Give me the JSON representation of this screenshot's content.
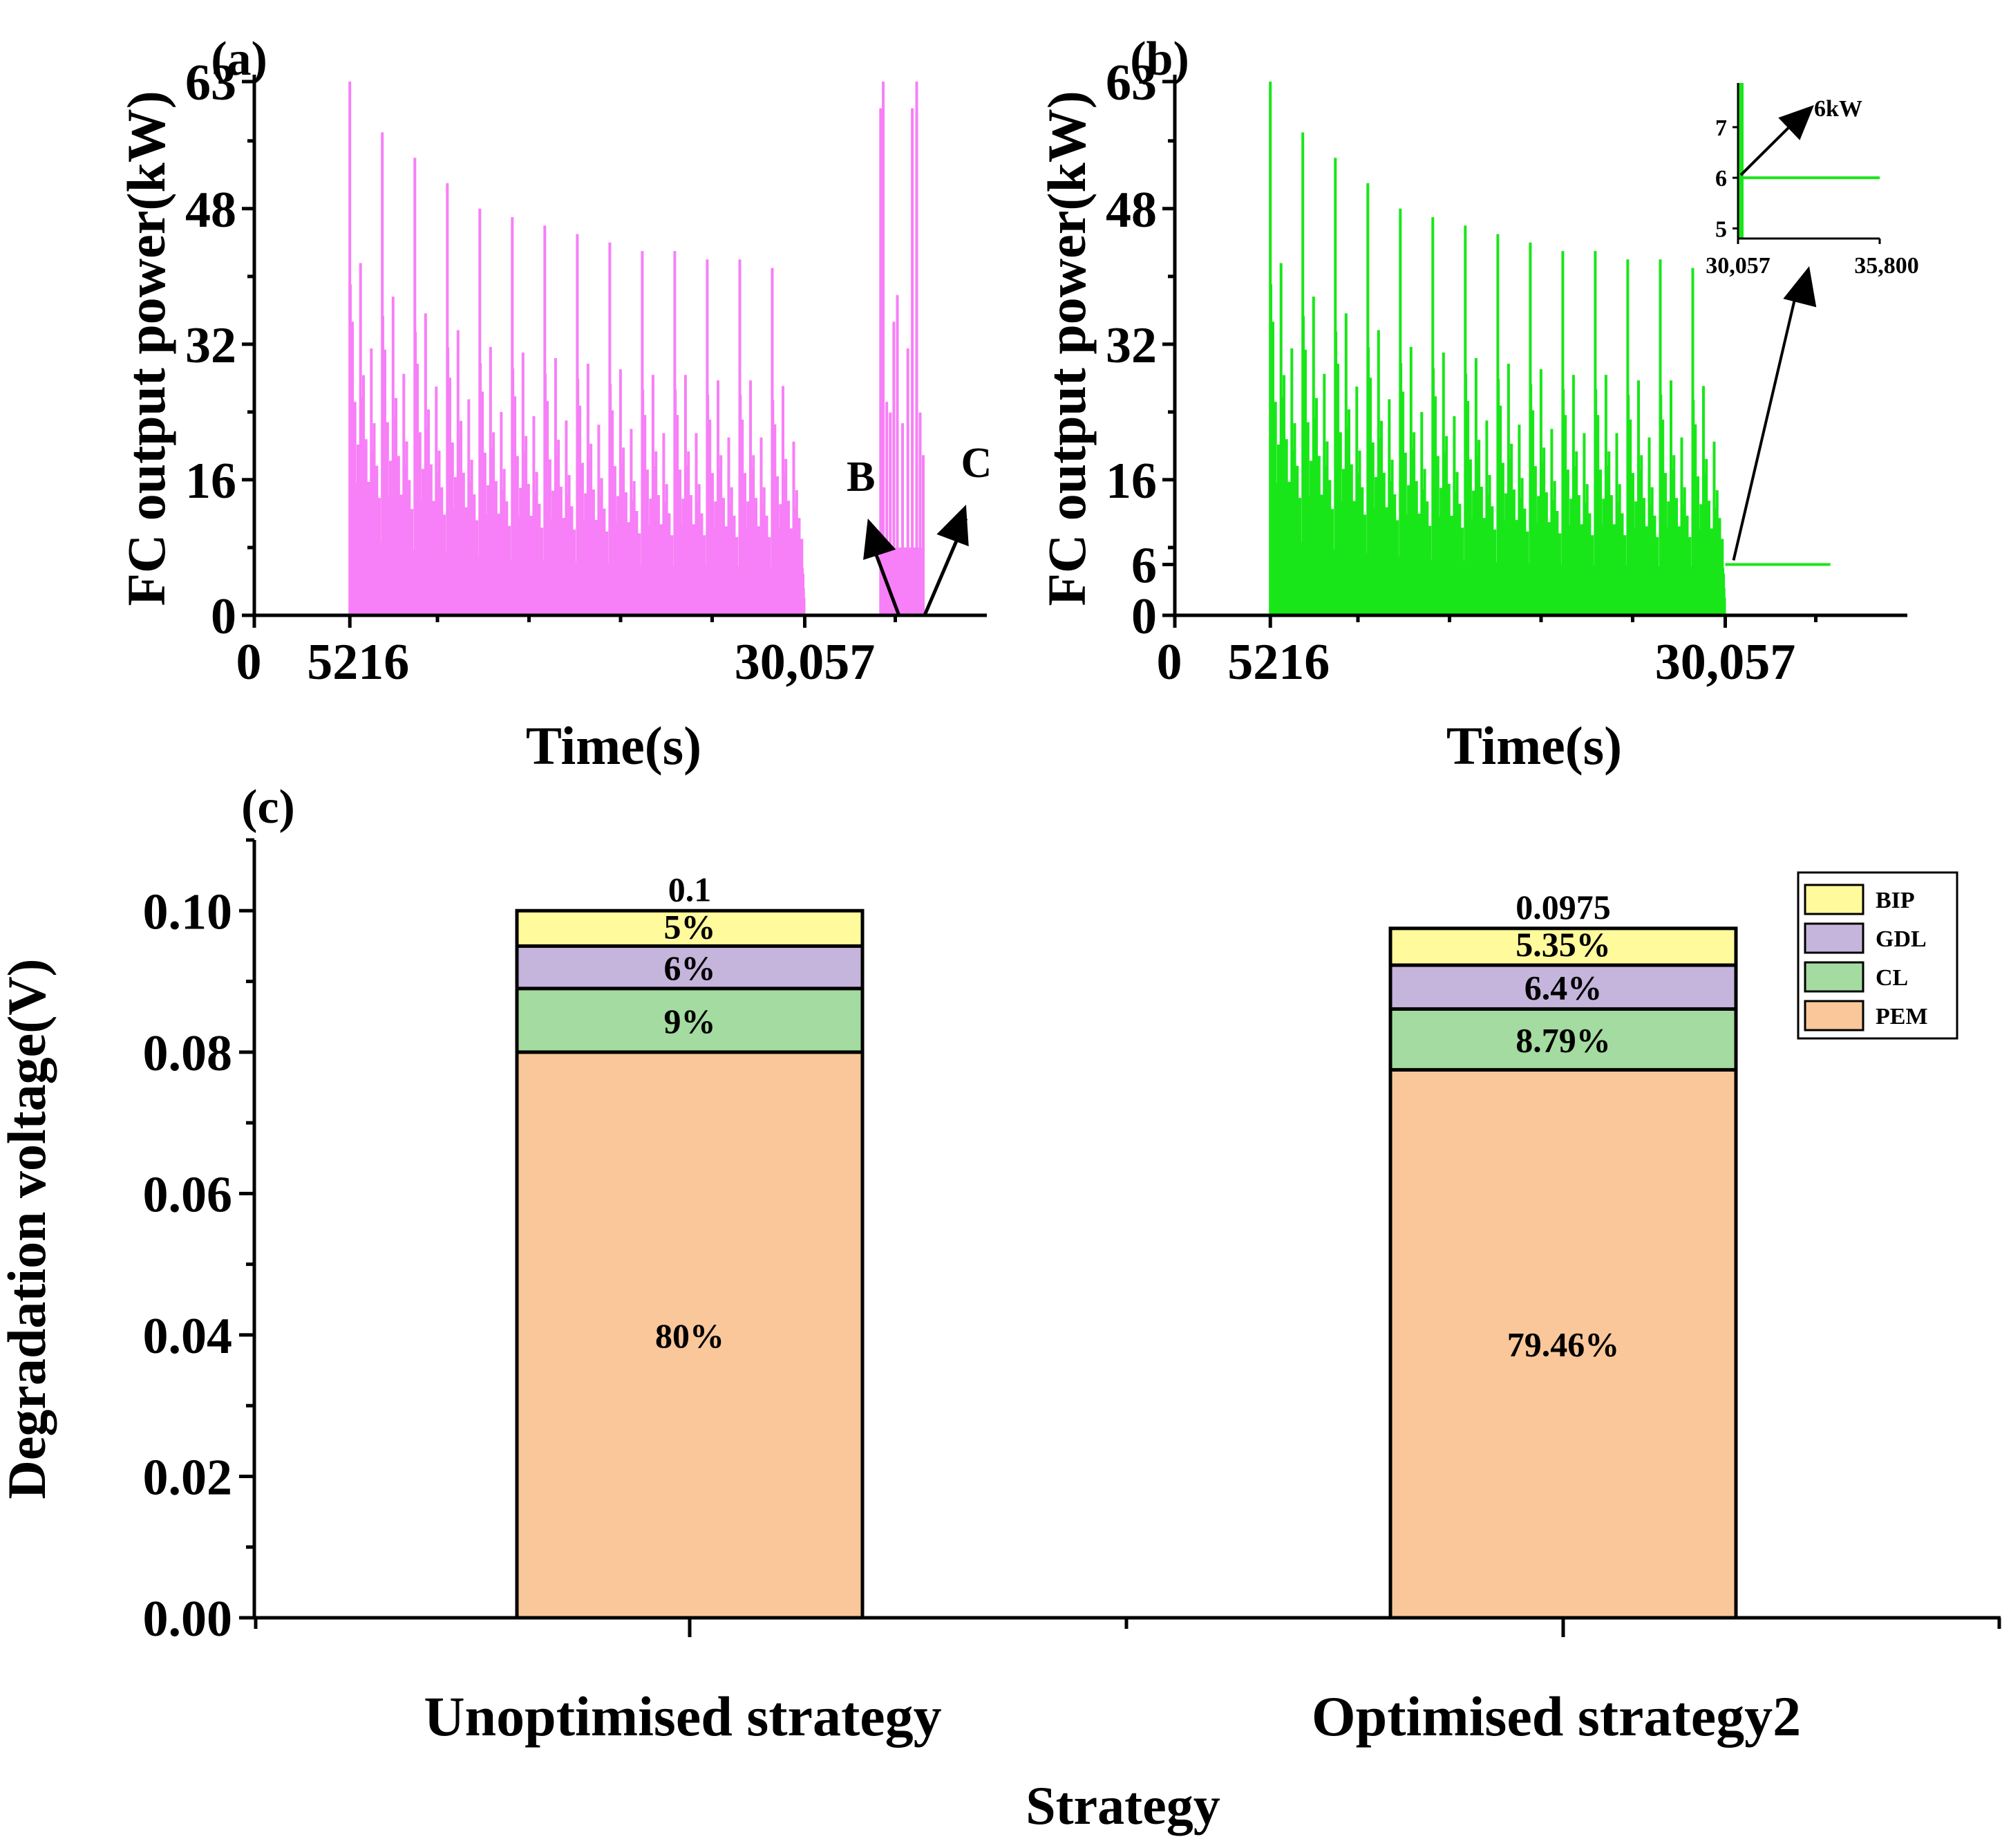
{
  "colors": {
    "panel_a_series": "#f77ff7",
    "panel_b_series": "#19e619",
    "PEM": "#f9c79a",
    "CL": "#a4dba0",
    "GDL": "#c5b5dc",
    "BIP": "#fffa9c",
    "axis": "#000000"
  },
  "chart_data": [
    {
      "id": "a",
      "panel_label": "(a)",
      "type": "line",
      "series_name": "FC output power",
      "xlabel": "Time(s)",
      "ylabel": "FC output power(kW)",
      "x_tick_labels": [
        "0",
        "5216",
        "30,057"
      ],
      "x_ticks": [
        0,
        5216,
        30057
      ],
      "y_ticks": [
        0,
        16,
        32,
        48,
        63
      ],
      "xlim": [
        0,
        40000
      ],
      "ylim": [
        0,
        63
      ],
      "cycle_start": 5216,
      "cycle_end": 30057,
      "cycle_count": 14,
      "cycle_peaks": [
        63,
        57,
        54,
        51,
        48,
        47,
        46,
        45,
        44,
        43,
        43,
        42,
        42,
        41
      ],
      "restart_burst": {
        "start": 34200,
        "end": 36600,
        "peak": 63
      },
      "annotations": [
        {
          "text": "B",
          "x": 35200,
          "y": 0
        },
        {
          "text": "C",
          "x": 36600,
          "y": 0
        }
      ]
    },
    {
      "id": "b",
      "panel_label": "(b)",
      "type": "line",
      "series_name": "FC output power",
      "xlabel": "Time(s)",
      "ylabel": "FC output power(kW)",
      "x_tick_labels": [
        "0",
        "5216",
        "30,057"
      ],
      "x_ticks": [
        0,
        5216,
        30057
      ],
      "y_ticks": [
        0,
        6,
        16,
        32,
        48,
        63
      ],
      "xlim": [
        0,
        40000
      ],
      "ylim": [
        0,
        63
      ],
      "cycle_start": 5216,
      "cycle_end": 30057,
      "cycle_count": 14,
      "cycle_peaks": [
        63,
        57,
        54,
        51,
        48,
        47,
        46,
        45,
        44,
        43,
        43,
        42,
        42,
        41
      ],
      "constant_after": {
        "start": 30057,
        "end": 35800,
        "value": 6
      },
      "inset": {
        "xlim": [
          30057,
          35800
        ],
        "ylim": [
          4.8,
          7.6
        ],
        "x_ticks": [
          30057,
          35800
        ],
        "x_tick_labels": [
          "30,057",
          "35,800"
        ],
        "y_ticks": [
          5,
          6,
          7
        ],
        "annotation": "6kW"
      }
    },
    {
      "id": "c",
      "panel_label": "(c)",
      "type": "bar",
      "stacked": true,
      "xlabel": "Strategy",
      "ylabel": "Degradation voltage(V)",
      "categories": [
        "Unoptimised strategy",
        "Optimised strategy2"
      ],
      "ylim": [
        0,
        0.11
      ],
      "y_ticks": [
        0.0,
        0.02,
        0.04,
        0.06,
        0.08,
        0.1
      ],
      "y_tick_labels": [
        "0.00",
        "0.02",
        "0.04",
        "0.06",
        "0.08",
        "0.10"
      ],
      "totals": [
        0.1,
        0.0975
      ],
      "total_labels": [
        "0.1",
        "0.0975"
      ],
      "series": [
        {
          "name": "PEM",
          "values": [
            0.08,
            0.0775
          ],
          "labels": [
            "80%",
            "79.46%"
          ]
        },
        {
          "name": "CL",
          "values": [
            0.009,
            0.0086
          ],
          "labels": [
            "9%",
            "8.79%"
          ]
        },
        {
          "name": "GDL",
          "values": [
            0.006,
            0.0062
          ],
          "labels": [
            "6%",
            "6.4%"
          ]
        },
        {
          "name": "BIP",
          "values": [
            0.005,
            0.0052
          ],
          "labels": [
            "5%",
            "5.35%"
          ]
        }
      ],
      "legend": [
        "BIP",
        "GDL",
        "CL",
        "PEM"
      ],
      "legend_position": "top-right"
    }
  ]
}
